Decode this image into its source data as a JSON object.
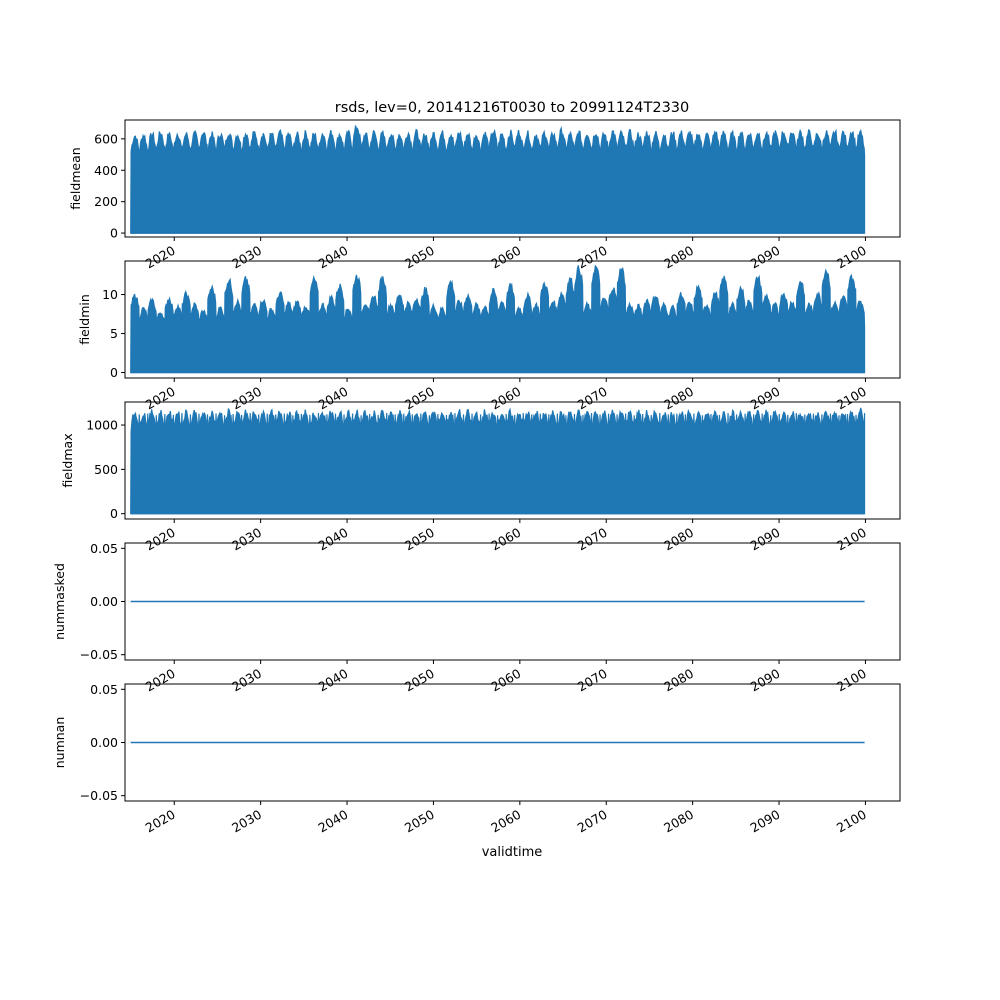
{
  "figure": {
    "title": "rsds, lev=0, 20141216T0030 to 20991124T2330",
    "xlabel": "validtime",
    "colors": {
      "series": "#1f77b4",
      "axes": "#000000",
      "background": "#ffffff"
    }
  },
  "chart_data": [
    {
      "type": "line",
      "name": "fieldmean",
      "ylabel": "fieldmean",
      "ylim": [
        -25,
        720
      ],
      "yticks": [
        0,
        200,
        400,
        600
      ],
      "yticklabels": [
        "0",
        "200",
        "400",
        "600"
      ],
      "xlim": [
        2014.3,
        2104.0
      ],
      "xticks": [
        2020,
        2030,
        2040,
        2050,
        2060,
        2070,
        2080,
        2090,
        2100
      ],
      "xticklabels": [
        "2020",
        "2030",
        "2040",
        "2050",
        "2060",
        "2070",
        "2080",
        "2090",
        "2100"
      ],
      "x_range": [
        2014.96,
        2099.9
      ],
      "fill_min": 0,
      "peaks": [
        640,
        645,
        650,
        660,
        648,
        655,
        650,
        652,
        665,
        648,
        655,
        662,
        650,
        658,
        660,
        655,
        650,
        660,
        652,
        648,
        658,
        650,
        655,
        662,
        650,
        658,
        700,
        650,
        660,
        652,
        655,
        650,
        660,
        662,
        650,
        655,
        658,
        650,
        660,
        652,
        648,
        655,
        668,
        650,
        660,
        665,
        655,
        650,
        660,
        655,
        672,
        650,
        660,
        658,
        665,
        650,
        668,
        655,
        660,
        652,
        662,
        655,
        650,
        660,
        658,
        662,
        655,
        650,
        665,
        660,
        652,
        660,
        658,
        662,
        655,
        660,
        665,
        670,
        662,
        660,
        655,
        662,
        665,
        660,
        670,
        658
      ],
      "troughs": [
        500,
        490,
        520,
        480,
        510,
        495,
        505,
        515,
        490,
        500
      ]
    },
    {
      "type": "line",
      "name": "fieldmin",
      "ylabel": "fieldmin",
      "ylim": [
        -0.7,
        14.3
      ],
      "yticks": [
        0,
        5,
        10
      ],
      "yticklabels": [
        "0",
        "5",
        "10"
      ],
      "xlim": [
        2014.3,
        2104.0
      ],
      "xticks": [
        2020,
        2030,
        2040,
        2050,
        2060,
        2070,
        2080,
        2090,
        2100
      ],
      "xticklabels": [
        "2020",
        "2030",
        "2040",
        "2050",
        "2060",
        "2070",
        "2080",
        "2090",
        "2100"
      ],
      "x_range": [
        2014.96,
        2099.9
      ],
      "fill_min": 0,
      "peaks": [
        10.2,
        8.5,
        9.6,
        8.0,
        9.8,
        8.8,
        10.4,
        9.0,
        8.2,
        11.2,
        8.6,
        12.2,
        9.4,
        12.4,
        9.0,
        9.6,
        8.4,
        10.5,
        9.2,
        9.4,
        8.8,
        12.3,
        9.0,
        10.0,
        11.5,
        8.5,
        12.8,
        9.2,
        10.1,
        12.5,
        9.0,
        10.4,
        9.2,
        9.8,
        11.0,
        8.8,
        8.5,
        12.0,
        9.4,
        10.2,
        9.0,
        8.8,
        10.8,
        9.4,
        11.5,
        8.6,
        10.2,
        9.0,
        11.8,
        9.4,
        10.5,
        12.4,
        13.8,
        9.0,
        14.0,
        9.8,
        11.2,
        13.8,
        9.0,
        8.8,
        9.6,
        10.2,
        9.0,
        8.7,
        10.4,
        9.2,
        11.3,
        9.0,
        10.5,
        12.5,
        9.0,
        11.2,
        9.5,
        12.6,
        10.2,
        9.0,
        10.5,
        9.4,
        12.0,
        9.0,
        10.5,
        13.6,
        9.2,
        10.0,
        12.7,
        9.5
      ],
      "troughs": [
        6.0,
        5.5,
        7.2,
        5.0,
        6.4,
        5.8,
        7.0,
        6.2,
        5.2,
        6.8
      ]
    },
    {
      "type": "line",
      "name": "fieldmax",
      "ylabel": "fieldmax",
      "ylim": [
        -60,
        1260
      ],
      "yticks": [
        0,
        500,
        1000
      ],
      "yticklabels": [
        "0",
        "500",
        "1000"
      ],
      "xlim": [
        2014.3,
        2104.0
      ],
      "xticks": [
        2020,
        2030,
        2040,
        2050,
        2060,
        2070,
        2080,
        2090,
        2100
      ],
      "xticklabels": [
        "2020",
        "2030",
        "2040",
        "2050",
        "2060",
        "2070",
        "2080",
        "2090",
        "2100"
      ],
      "x_range": [
        2014.96,
        2099.9
      ],
      "fill_min": 0,
      "peaks": [
        1180,
        1175,
        1185,
        1178,
        1182,
        1176,
        1180,
        1185,
        1172,
        1180,
        1178,
        1184,
        1176,
        1180,
        1182,
        1178,
        1175,
        1185,
        1180,
        1176,
        1182,
        1178,
        1180,
        1184,
        1176,
        1180,
        1182,
        1178,
        1175,
        1185,
        1180,
        1176,
        1182,
        1178,
        1180,
        1184,
        1176,
        1180,
        1182,
        1178,
        1175,
        1185,
        1180,
        1176,
        1182,
        1178,
        1180,
        1184,
        1176,
        1180,
        1182,
        1178,
        1175,
        1185,
        1180,
        1176,
        1182,
        1178,
        1180,
        1184,
        1176,
        1180,
        1182,
        1178,
        1175,
        1185,
        1180,
        1176,
        1182,
        1178,
        1180,
        1184,
        1176,
        1180,
        1182,
        1178,
        1175,
        1185,
        1180,
        1176,
        1182,
        1178,
        1180,
        1184,
        1176,
        1200
      ],
      "troughs": [
        1120,
        1130,
        1110,
        1125,
        1115,
        1135,
        1120,
        1128
      ]
    },
    {
      "type": "line",
      "name": "nummasked",
      "ylabel": "nummasked",
      "ylim": [
        -0.055,
        0.055
      ],
      "yticks": [
        -0.05,
        0.0,
        0.05
      ],
      "yticklabels": [
        "−0.05",
        "0.00",
        "0.05"
      ],
      "xlim": [
        2014.3,
        2104.0
      ],
      "xticks": [
        2020,
        2030,
        2040,
        2050,
        2060,
        2070,
        2080,
        2090,
        2100
      ],
      "xticklabels": [
        "2020",
        "2030",
        "2040",
        "2050",
        "2060",
        "2070",
        "2080",
        "2090",
        "2100"
      ],
      "x": [
        2014.96,
        2099.9
      ],
      "y": [
        0.0,
        0.0
      ]
    },
    {
      "type": "line",
      "name": "numnan",
      "ylabel": "numnan",
      "ylim": [
        -0.055,
        0.055
      ],
      "yticks": [
        -0.05,
        0.0,
        0.05
      ],
      "yticklabels": [
        "−0.05",
        "0.00",
        "0.05"
      ],
      "xlim": [
        2014.3,
        2104.0
      ],
      "xticks": [
        2020,
        2030,
        2040,
        2050,
        2060,
        2070,
        2080,
        2090,
        2100
      ],
      "xticklabels": [
        "2020",
        "2030",
        "2040",
        "2050",
        "2060",
        "2070",
        "2080",
        "2090",
        "2100"
      ],
      "x": [
        2014.96,
        2099.9
      ],
      "y": [
        0.0,
        0.0
      ]
    }
  ]
}
